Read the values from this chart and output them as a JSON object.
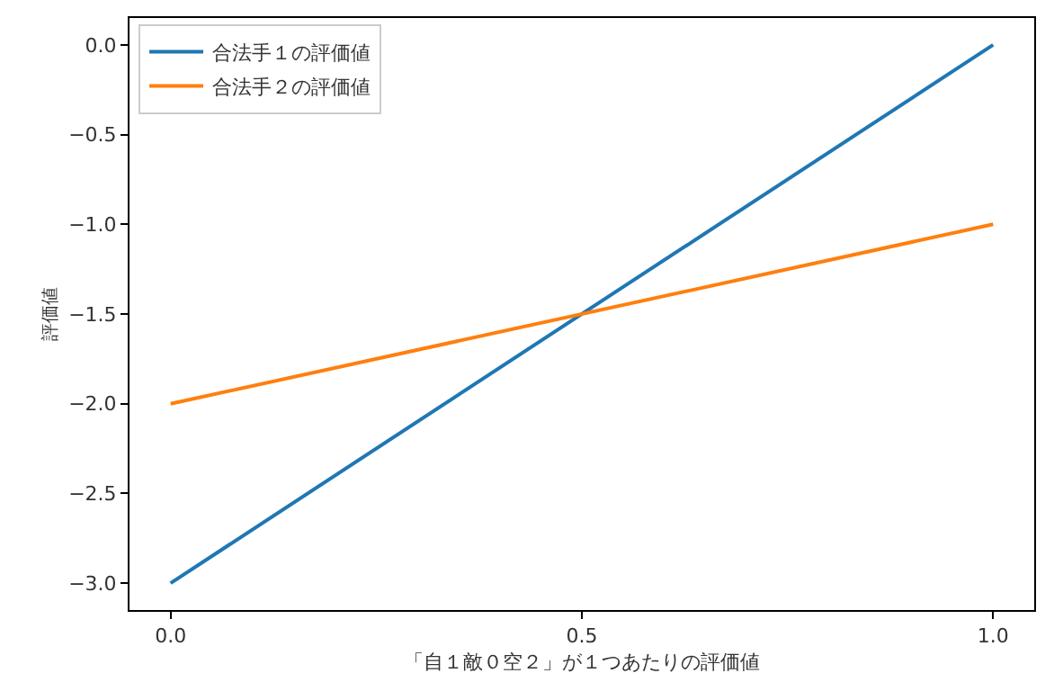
{
  "chart_data": {
    "type": "line",
    "xlabel": "「自１敵０空２」が１つあたりの評価値",
    "ylabel": "評価値",
    "x": [
      0.0,
      1.0
    ],
    "series": [
      {
        "name": "合法手１の評価値",
        "color": "#1f77b4",
        "values": [
          -3.0,
          0.0
        ]
      },
      {
        "name": "合法手２の評価値",
        "color": "#ff7f0e",
        "values": [
          -2.0,
          -1.0
        ]
      }
    ],
    "xlim": [
      -0.05,
      1.05
    ],
    "ylim": [
      -3.15,
      0.15
    ],
    "xticks": [
      {
        "value": 0.0,
        "label": "0.0"
      },
      {
        "value": 0.5,
        "label": "0.5"
      },
      {
        "value": 1.0,
        "label": "1.0"
      }
    ],
    "yticks": [
      {
        "value": -3.0,
        "label": "−3.0"
      },
      {
        "value": -2.5,
        "label": "−2.5"
      },
      {
        "value": -2.0,
        "label": "−2.0"
      },
      {
        "value": -1.5,
        "label": "−1.5"
      },
      {
        "value": -1.0,
        "label": "−1.0"
      },
      {
        "value": -0.5,
        "label": "−0.5"
      },
      {
        "value": 0.0,
        "label": "0.0"
      }
    ],
    "legend": "top left",
    "marker": "none",
    "line_style": "solid"
  }
}
